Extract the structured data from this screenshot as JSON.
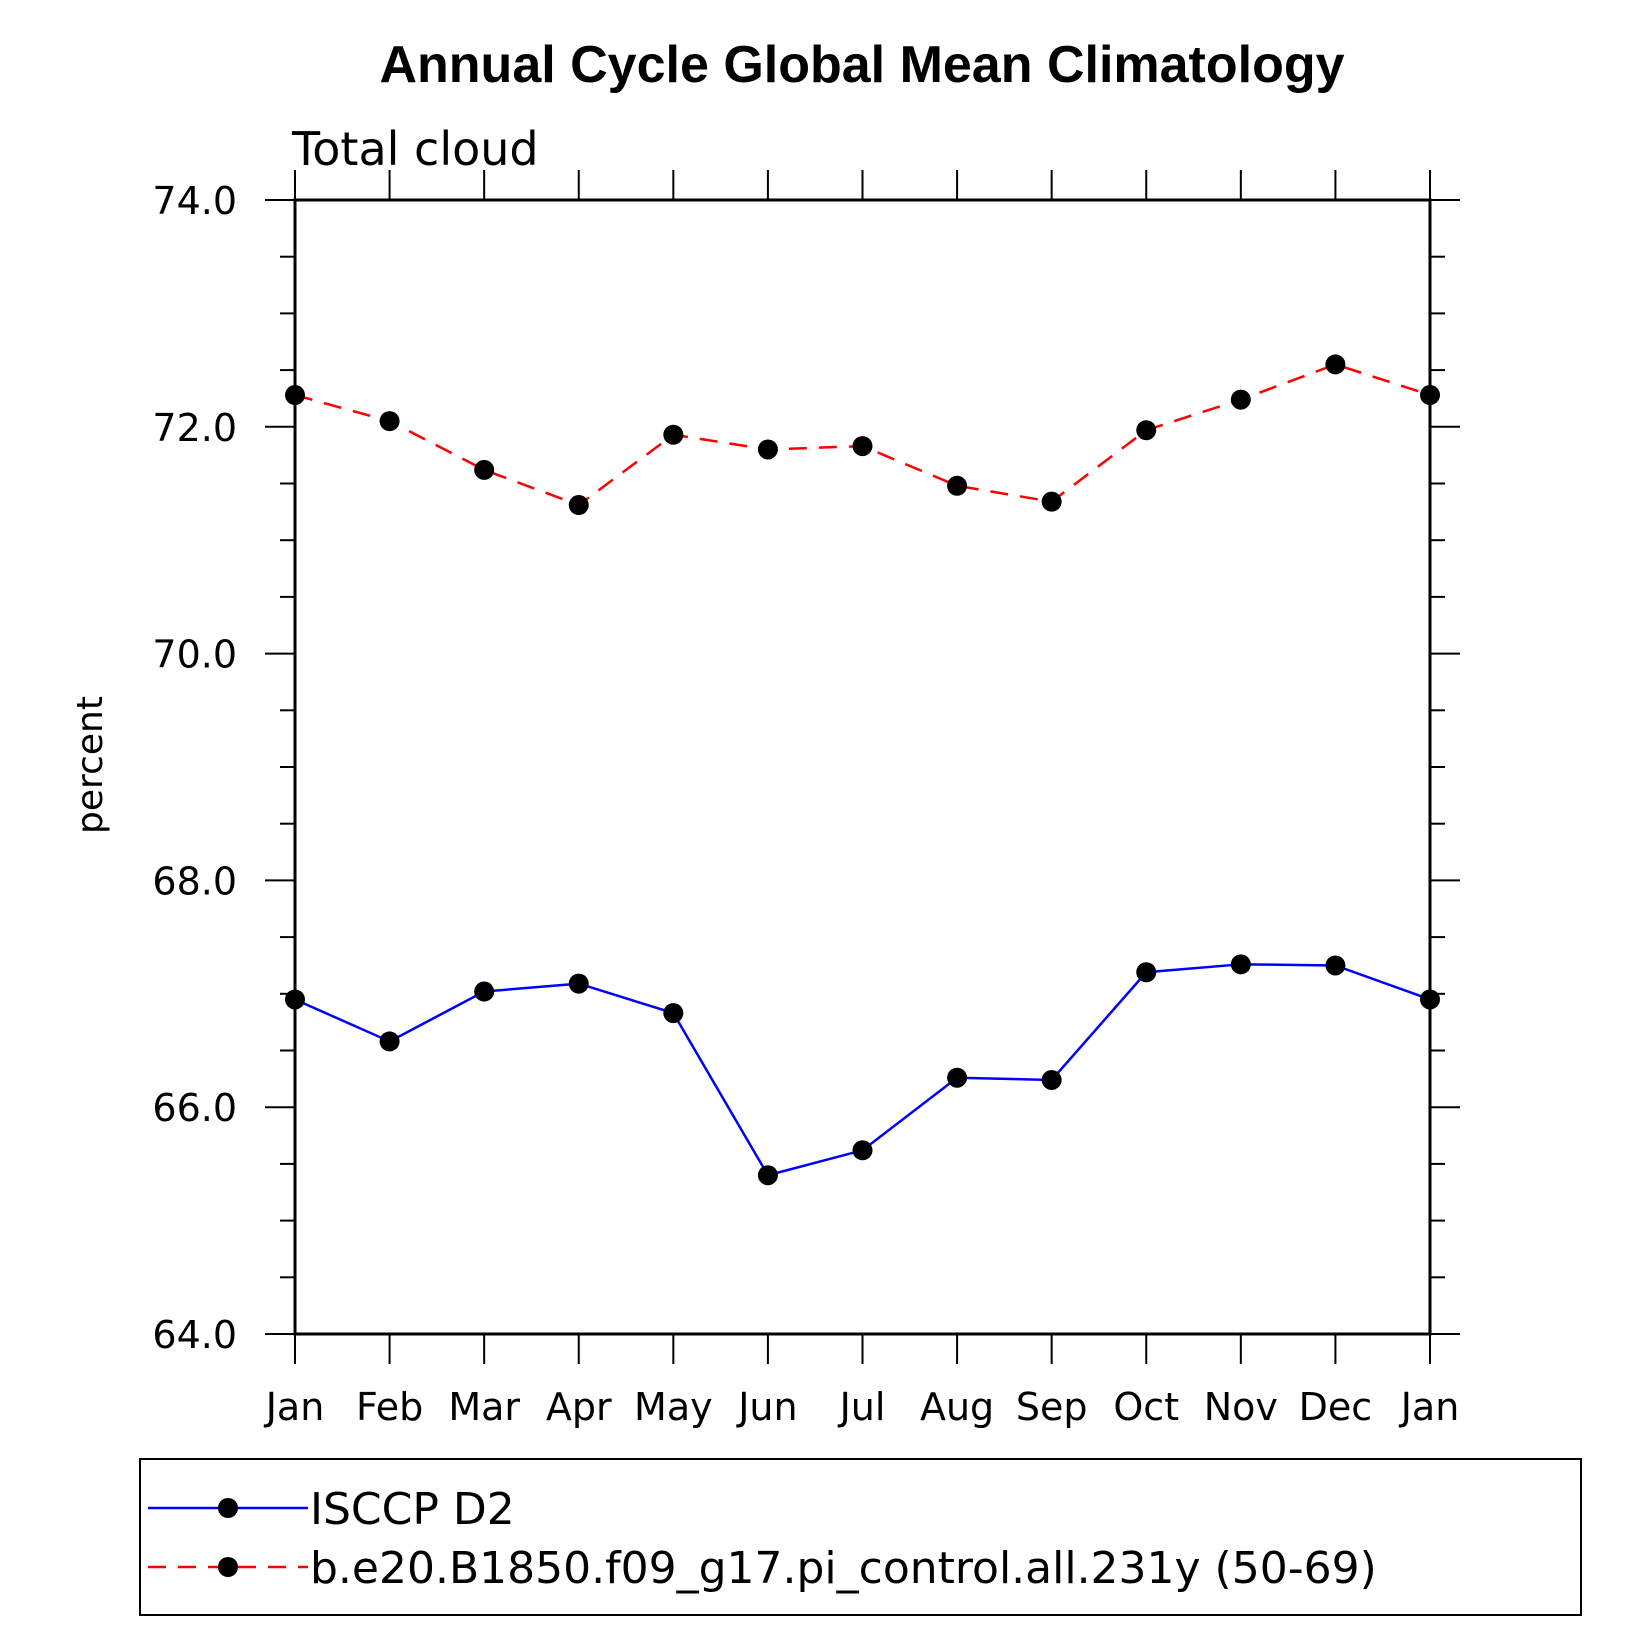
{
  "chart_data": {
    "type": "line",
    "title": "Annual Cycle Global Mean Climatology",
    "subtitle": "Total cloud",
    "xlabel": "",
    "ylabel": "percent",
    "ylim": [
      64.0,
      74.0
    ],
    "yticks": [
      "64.0",
      "66.0",
      "68.0",
      "70.0",
      "72.0",
      "74.0"
    ],
    "categories": [
      "Jan",
      "Feb",
      "Mar",
      "Apr",
      "May",
      "Jun",
      "Jul",
      "Aug",
      "Sep",
      "Oct",
      "Nov",
      "Dec",
      "Jan"
    ],
    "grid": false,
    "legend_position": "bottom",
    "series": [
      {
        "name": "ISCCP D2",
        "color": "#0000ff",
        "dashed": false,
        "marker": "filled-circle",
        "values": [
          66.95,
          66.58,
          67.02,
          67.09,
          66.83,
          65.4,
          65.62,
          66.26,
          66.24,
          67.19,
          67.26,
          67.25,
          66.95
        ]
      },
      {
        "name": "b.e20.B1850.f09_g17.pi_control.all.231y (50-69)",
        "color": "#ff0000",
        "dashed": true,
        "marker": "filled-circle",
        "values": [
          72.28,
          72.05,
          71.62,
          71.31,
          71.93,
          71.8,
          71.83,
          71.48,
          71.34,
          71.97,
          72.24,
          72.55,
          72.28
        ]
      }
    ]
  }
}
